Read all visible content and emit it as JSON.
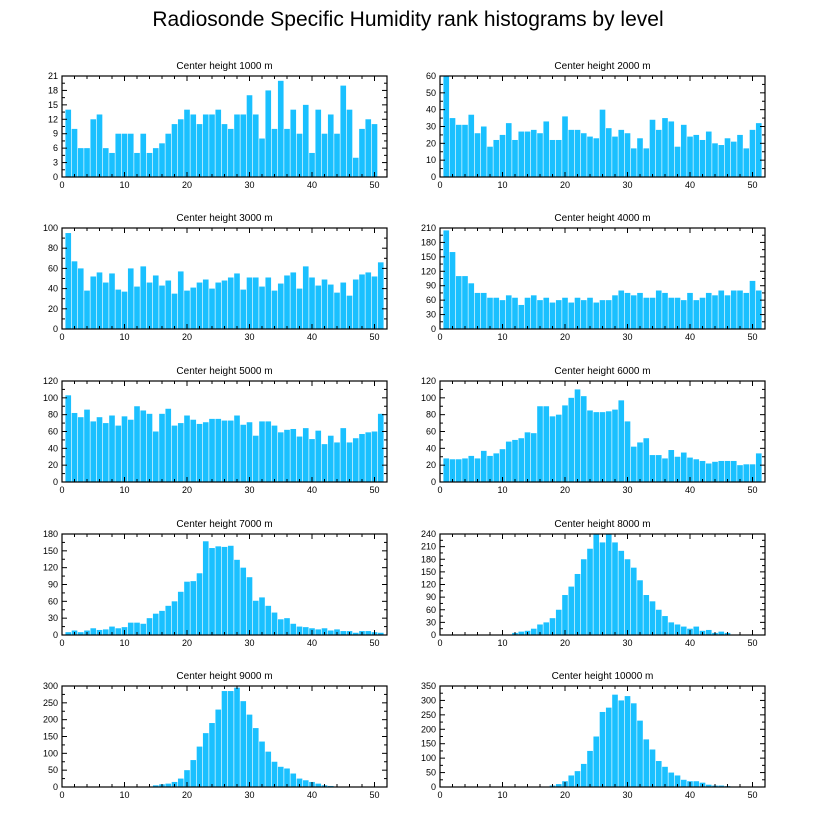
{
  "title": "Radiosonde Specific Humidity rank histograms by level",
  "bar_color": "#1ac0ff",
  "chart_data": [
    {
      "type": "bar",
      "title": "Center height 1000 m",
      "xlim": [
        0,
        52
      ],
      "ylim": [
        0,
        21
      ],
      "xticks": [
        0,
        10,
        20,
        30,
        40,
        50
      ],
      "yticks": [
        0,
        3,
        6,
        9,
        12,
        15,
        18,
        21
      ],
      "values": [
        14,
        10,
        6,
        6,
        12,
        13,
        6,
        5,
        9,
        9,
        9,
        5,
        9,
        5,
        6,
        7,
        9,
        11,
        12,
        14,
        13,
        11,
        13,
        13,
        14,
        11,
        10,
        13,
        13,
        17,
        13,
        8,
        18,
        10,
        20,
        10,
        14,
        9,
        15,
        5,
        14,
        9,
        13,
        9,
        19,
        14,
        4,
        10,
        12,
        11,
        0
      ]
    },
    {
      "type": "bar",
      "title": "Center height 2000 m",
      "xlim": [
        0,
        52
      ],
      "ylim": [
        0,
        60
      ],
      "xticks": [
        0,
        10,
        20,
        30,
        40,
        50
      ],
      "yticks": [
        0,
        10,
        20,
        30,
        40,
        50,
        60
      ],
      "values": [
        60,
        35,
        31,
        31,
        37,
        26,
        30,
        18,
        22,
        25,
        32,
        22,
        27,
        27,
        28,
        26,
        33,
        22,
        22,
        36,
        28,
        28,
        26,
        24,
        23,
        40,
        29,
        24,
        28,
        26,
        17,
        23,
        17,
        34,
        28,
        35,
        33,
        18,
        31,
        24,
        25,
        22,
        27,
        20,
        19,
        23,
        21,
        25,
        17,
        28,
        32
      ]
    },
    {
      "type": "bar",
      "title": "Center height 3000 m",
      "xlim": [
        0,
        52
      ],
      "ylim": [
        0,
        100
      ],
      "xticks": [
        0,
        10,
        20,
        30,
        40,
        50
      ],
      "yticks": [
        0,
        20,
        40,
        60,
        80,
        100
      ],
      "values": [
        95,
        67,
        60,
        38,
        52,
        56,
        46,
        55,
        39,
        37,
        60,
        42,
        62,
        46,
        53,
        43,
        48,
        35,
        57,
        38,
        41,
        46,
        49,
        40,
        46,
        48,
        51,
        55,
        39,
        51,
        51,
        42,
        51,
        38,
        45,
        53,
        56,
        40,
        62,
        51,
        43,
        49,
        44,
        36,
        46,
        33,
        49,
        54,
        56,
        52,
        66
      ]
    },
    {
      "type": "bar",
      "title": "Center height 4000 m",
      "xlim": [
        0,
        52
      ],
      "ylim": [
        0,
        210
      ],
      "xticks": [
        0,
        10,
        20,
        30,
        40,
        50
      ],
      "yticks": [
        0,
        30,
        60,
        90,
        120,
        150,
        180,
        210
      ],
      "values": [
        205,
        160,
        110,
        110,
        95,
        75,
        75,
        65,
        65,
        60,
        70,
        65,
        50,
        65,
        70,
        60,
        65,
        55,
        60,
        65,
        55,
        65,
        60,
        65,
        55,
        60,
        60,
        70,
        80,
        75,
        70,
        75,
        65,
        65,
        80,
        75,
        65,
        65,
        60,
        75,
        60,
        65,
        75,
        70,
        80,
        70,
        80,
        80,
        75,
        100,
        80
      ]
    },
    {
      "type": "bar",
      "title": "Center height 5000 m",
      "xlim": [
        0,
        52
      ],
      "ylim": [
        0,
        120
      ],
      "xticks": [
        0,
        10,
        20,
        30,
        40,
        50
      ],
      "yticks": [
        0,
        20,
        40,
        60,
        80,
        100,
        120
      ],
      "values": [
        103,
        82,
        77,
        86,
        72,
        77,
        70,
        79,
        67,
        78,
        74,
        90,
        85,
        81,
        60,
        81,
        87,
        67,
        70,
        79,
        74,
        69,
        71,
        75,
        75,
        73,
        73,
        79,
        68,
        71,
        55,
        72,
        72,
        67,
        59,
        62,
        63,
        54,
        64,
        51,
        61,
        45,
        55,
        47,
        64,
        47,
        52,
        57,
        59,
        60,
        81
      ]
    },
    {
      "type": "bar",
      "title": "Center height 6000 m",
      "xlim": [
        0,
        52
      ],
      "ylim": [
        0,
        120
      ],
      "xticks": [
        0,
        10,
        20,
        30,
        40,
        50
      ],
      "yticks": [
        0,
        20,
        40,
        60,
        80,
        100,
        120
      ],
      "values": [
        28,
        27,
        27,
        28,
        31,
        28,
        37,
        31,
        34,
        39,
        48,
        50,
        52,
        59,
        58,
        90,
        90,
        78,
        80,
        91,
        100,
        110,
        102,
        85,
        83,
        83,
        84,
        86,
        97,
        72,
        42,
        47,
        52,
        32,
        32,
        28,
        38,
        30,
        35,
        29,
        27,
        25,
        22,
        24,
        25,
        25,
        25,
        20,
        21,
        21,
        34
      ]
    },
    {
      "type": "bar",
      "title": "Center height 7000 m",
      "xlim": [
        0,
        52
      ],
      "ylim": [
        0,
        180
      ],
      "xticks": [
        0,
        10,
        20,
        30,
        40,
        50
      ],
      "yticks": [
        0,
        30,
        60,
        90,
        120,
        150,
        180
      ],
      "values": [
        5,
        8,
        5,
        8,
        12,
        9,
        10,
        15,
        12,
        14,
        22,
        22,
        20,
        30,
        38,
        43,
        52,
        60,
        77,
        95,
        96,
        110,
        167,
        155,
        158,
        157,
        159,
        134,
        120,
        103,
        61,
        67,
        52,
        40,
        28,
        30,
        20,
        15,
        14,
        12,
        10,
        12,
        8,
        10,
        7,
        7,
        4,
        7,
        7,
        5,
        4
      ]
    },
    {
      "type": "bar",
      "title": "Center height 8000 m",
      "xlim": [
        0,
        52
      ],
      "ylim": [
        0,
        240
      ],
      "xticks": [
        0,
        10,
        20,
        30,
        40,
        50
      ],
      "yticks": [
        0,
        30,
        60,
        90,
        120,
        150,
        180,
        210,
        240
      ],
      "values": [
        0,
        0,
        0,
        0,
        0,
        0,
        0,
        0,
        0,
        0,
        0,
        5,
        8,
        10,
        15,
        25,
        30,
        40,
        60,
        95,
        115,
        145,
        180,
        205,
        240,
        220,
        240,
        220,
        200,
        180,
        160,
        130,
        95,
        80,
        60,
        45,
        30,
        25,
        20,
        15,
        20,
        10,
        12,
        5,
        8,
        5,
        0,
        0,
        0,
        0,
        0
      ]
    },
    {
      "type": "bar",
      "title": "Center height 9000 m",
      "xlim": [
        0,
        52
      ],
      "ylim": [
        0,
        300
      ],
      "xticks": [
        0,
        10,
        20,
        30,
        40,
        50
      ],
      "yticks": [
        0,
        50,
        100,
        150,
        200,
        250,
        300
      ],
      "values": [
        0,
        0,
        0,
        0,
        0,
        0,
        0,
        0,
        0,
        0,
        0,
        0,
        0,
        0,
        5,
        8,
        10,
        15,
        25,
        50,
        80,
        120,
        160,
        190,
        230,
        285,
        285,
        295,
        255,
        215,
        175,
        135,
        105,
        75,
        60,
        55,
        40,
        25,
        20,
        15,
        10,
        5,
        3,
        0,
        0,
        0,
        0,
        0,
        0,
        0,
        0
      ]
    },
    {
      "type": "bar",
      "title": "Center height 10000 m",
      "xlim": [
        0,
        52
      ],
      "ylim": [
        0,
        350
      ],
      "xticks": [
        0,
        10,
        20,
        30,
        40,
        50
      ],
      "yticks": [
        0,
        50,
        100,
        150,
        200,
        250,
        300,
        350
      ],
      "values": [
        0,
        0,
        0,
        0,
        0,
        0,
        0,
        0,
        0,
        0,
        0,
        0,
        0,
        0,
        0,
        0,
        0,
        5,
        10,
        20,
        40,
        55,
        80,
        125,
        175,
        260,
        275,
        320,
        300,
        315,
        290,
        230,
        165,
        130,
        90,
        70,
        50,
        40,
        25,
        20,
        20,
        15,
        8,
        5,
        5,
        3,
        0,
        0,
        0,
        0,
        0
      ]
    }
  ]
}
